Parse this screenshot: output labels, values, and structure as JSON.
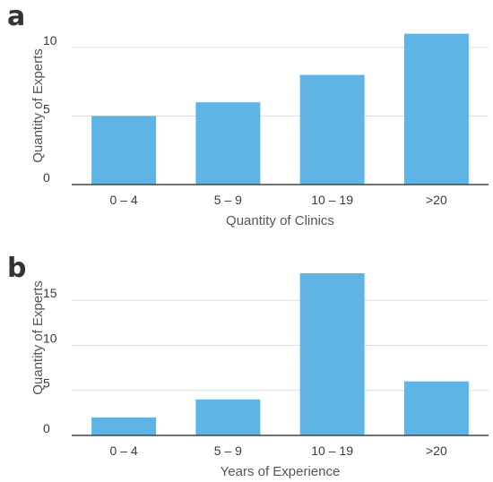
{
  "colors": {
    "bar": "#5db4e5",
    "grid": "#dedede",
    "axis": "#444444"
  },
  "chart_data": [
    {
      "panel": "a",
      "type": "bar",
      "categories": [
        "0 – 4",
        "5 – 9",
        "10 – 19",
        ">20"
      ],
      "values": [
        5,
        6,
        8,
        11
      ],
      "xlabel": "Quantity of Clinics",
      "ylabel": "Quantity of Experts",
      "yticks": [
        0,
        5,
        10
      ],
      "ylim": [
        0,
        11.5
      ],
      "grid": true
    },
    {
      "panel": "b",
      "type": "bar",
      "categories": [
        "0 – 4",
        "5 – 9",
        "10 – 19",
        ">20"
      ],
      "values": [
        2,
        4,
        18,
        6
      ],
      "xlabel": "Years of Experience",
      "ylabel": "Quantity of Experts",
      "yticks": [
        0,
        5,
        10,
        15
      ],
      "ylim": [
        0,
        18.7
      ],
      "grid": true
    }
  ]
}
